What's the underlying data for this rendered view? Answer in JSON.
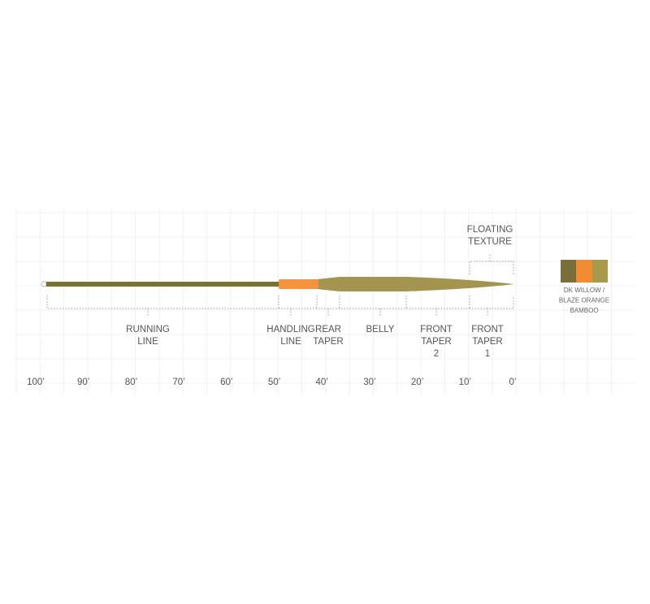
{
  "sections": [
    {
      "lines": [
        "RUNNING",
        "LINE"
      ]
    },
    {
      "lines": [
        "HANDLING",
        "LINE"
      ]
    },
    {
      "lines": [
        "REAR",
        "TAPER"
      ]
    },
    {
      "lines": [
        "BELLY"
      ]
    },
    {
      "lines": [
        "FRONT",
        "TAPER",
        "2"
      ]
    },
    {
      "lines": [
        "FRONT",
        "TAPER",
        "1"
      ]
    }
  ],
  "floating_texture": {
    "lines": [
      "FLOATING",
      "TEXTURE"
    ]
  },
  "axis_labels": [
    "100’",
    "90’",
    "80’",
    "70’",
    "60’",
    "50’",
    "40’",
    "30’",
    "20’",
    "10’",
    "0’"
  ],
  "legend": {
    "lines": [
      "DK WILLOW /",
      "BLAZE ORANGE",
      "BAMBOO"
    ]
  }
}
